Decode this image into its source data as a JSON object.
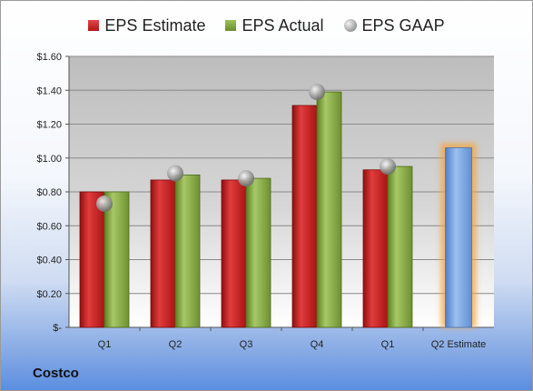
{
  "company": "Costco",
  "chart_data": {
    "type": "bar",
    "categories": [
      "Q1",
      "Q2",
      "Q3",
      "Q4",
      "Q1",
      "Q2 Estimate"
    ],
    "series": [
      {
        "name": "EPS Estimate",
        "color": "#c41e1e",
        "values": [
          0.8,
          0.87,
          0.87,
          1.31,
          0.93,
          null
        ]
      },
      {
        "name": "EPS Actual",
        "color": "#7a9e36",
        "values": [
          0.8,
          0.9,
          0.88,
          1.39,
          0.95,
          null
        ]
      },
      {
        "name": "EPS GAAP",
        "color": "#a0a0a0",
        "type": "scatter",
        "values": [
          0.73,
          0.91,
          0.88,
          1.39,
          0.95,
          null
        ]
      }
    ],
    "highlight": {
      "category": "Q2 Estimate",
      "value": 1.06,
      "color": "#6f9ee0",
      "glow": "#f4a43a"
    },
    "y_ticks": [
      "$-",
      "$0.20",
      "$0.40",
      "$0.60",
      "$0.80",
      "$1.00",
      "$1.20",
      "$1.40",
      "$1.60"
    ],
    "ylim": [
      0,
      1.6
    ],
    "grid": true,
    "legend": "top"
  }
}
